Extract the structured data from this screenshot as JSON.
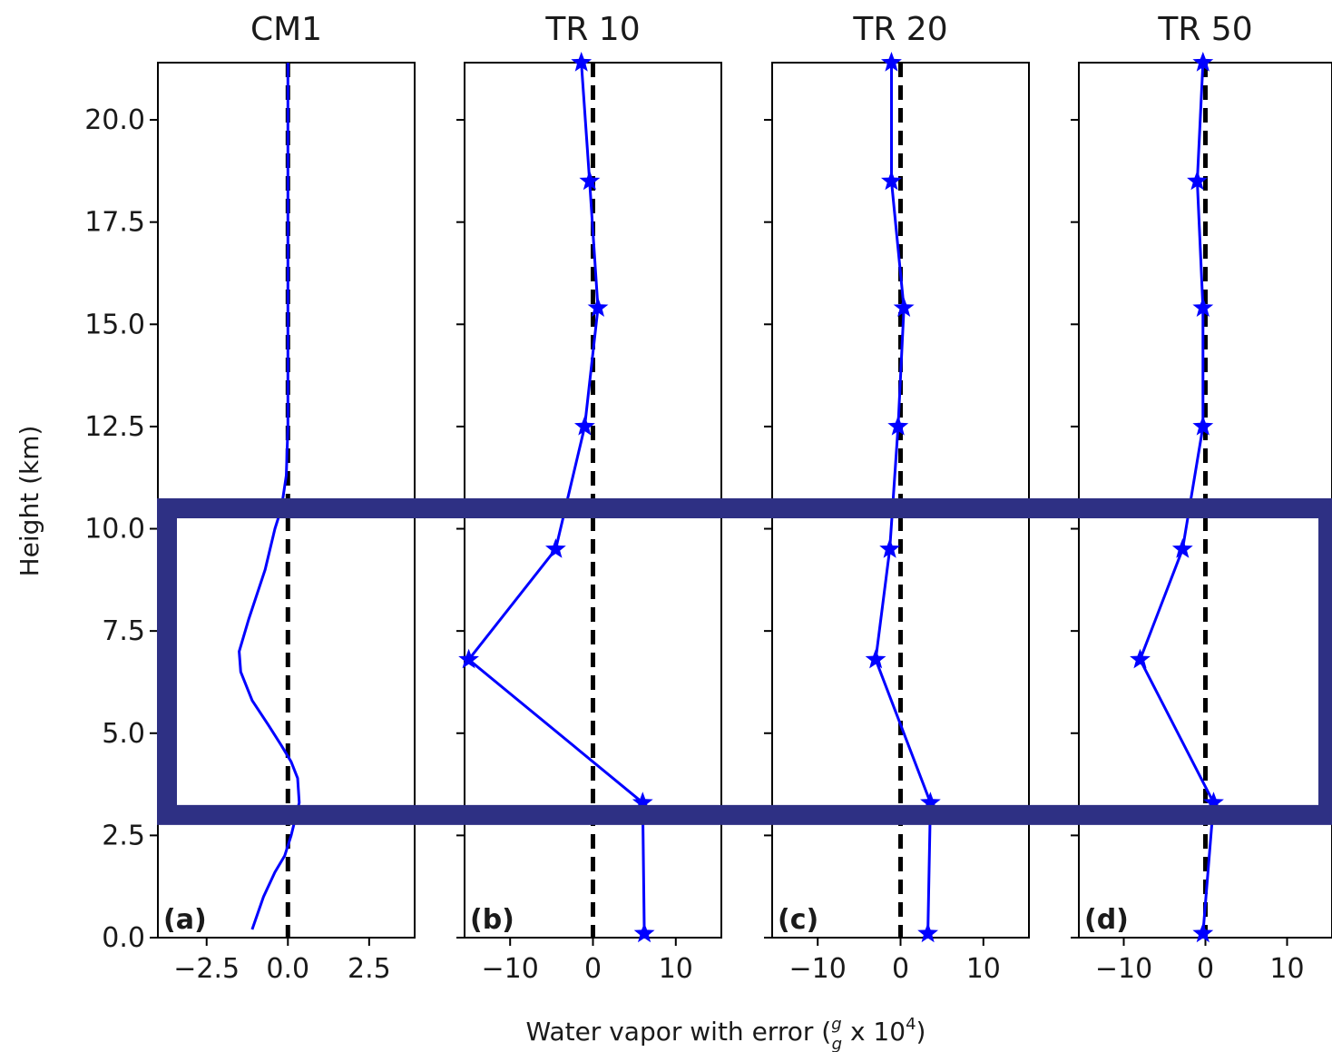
{
  "figure": {
    "ylabel": "Height (km)",
    "xlabel": "Water vapor with error (",
    "xlabel_frac_num": "g",
    "xlabel_frac_den": "g",
    "xlabel_tail": " x 10",
    "xlabel_exp": "4",
    "xlabel_close": ")"
  },
  "colors": {
    "series": "#0000ff",
    "reference": "#000000",
    "highlight": "#2e3084"
  },
  "highlight_box": {
    "y_range_km": [
      3.0,
      10.5
    ],
    "spans": "all panels"
  },
  "chart_data": [
    {
      "type": "line",
      "title": "CM1",
      "panel_label": "(a)",
      "xlim": [
        -4,
        3.9
      ],
      "ylim": [
        0,
        21.4
      ],
      "xticks": [
        -2.5,
        0.0,
        2.5
      ],
      "xtick_labels": [
        "−2.5",
        "0.0",
        "2.5"
      ],
      "yticks": [
        0.0,
        2.5,
        5.0,
        7.5,
        10.0,
        12.5,
        15.0,
        17.5,
        20.0
      ],
      "ytick_labels": [
        "0.0",
        "2.5",
        "5.0",
        "7.5",
        "10.0",
        "12.5",
        "15.0",
        "17.5",
        "20.0"
      ],
      "reference_x": 0,
      "markers": false,
      "series": [
        {
          "x": [
            -1.1,
            -0.75,
            -0.4,
            -0.1,
            0.1,
            0.35,
            0.3,
            0.1,
            -0.2,
            -0.6,
            -1.1,
            -1.45,
            -1.5,
            -1.2,
            -0.7,
            -0.4,
            -0.2,
            -0.05,
            0.0,
            0.0,
            0.0,
            0.0
          ],
          "y": [
            0.2,
            1.0,
            1.6,
            2.0,
            2.5,
            3.3,
            3.9,
            4.3,
            4.7,
            5.2,
            5.8,
            6.5,
            7.0,
            7.8,
            9.0,
            10.0,
            10.5,
            11.3,
            12.5,
            15.0,
            18.5,
            21.4
          ]
        }
      ]
    },
    {
      "type": "line",
      "title": "TR 10",
      "panel_label": "(b)",
      "xlim": [
        -15.5,
        15.5
      ],
      "ylim": [
        0,
        21.4
      ],
      "xticks": [
        -10,
        0,
        10
      ],
      "xtick_labels": [
        "−10",
        "0",
        "10"
      ],
      "yticks": [
        0.0,
        2.5,
        5.0,
        7.5,
        10.0,
        12.5,
        15.0,
        17.5,
        20.0
      ],
      "reference_x": 0,
      "markers": true,
      "series": [
        {
          "x": [
            6.2,
            6.0,
            -15.0,
            -4.5,
            -1.0,
            0.6,
            -0.4,
            -1.4
          ],
          "y": [
            0.1,
            3.3,
            6.8,
            9.5,
            12.5,
            15.4,
            18.5,
            21.4
          ]
        }
      ]
    },
    {
      "type": "line",
      "title": "TR 20",
      "panel_label": "(c)",
      "xlim": [
        -15.5,
        15.5
      ],
      "ylim": [
        0,
        21.4
      ],
      "xticks": [
        -10,
        0,
        10
      ],
      "xtick_labels": [
        "−10",
        "0",
        "10"
      ],
      "yticks": [
        0.0,
        2.5,
        5.0,
        7.5,
        10.0,
        12.5,
        15.0,
        17.5,
        20.0
      ],
      "reference_x": 0,
      "markers": true,
      "series": [
        {
          "x": [
            3.3,
            3.6,
            -3.0,
            -1.3,
            -0.3,
            0.4,
            -1.1,
            -1.1
          ],
          "y": [
            0.1,
            3.3,
            6.8,
            9.5,
            12.5,
            15.4,
            18.5,
            21.4
          ]
        }
      ]
    },
    {
      "type": "line",
      "title": "TR 50",
      "panel_label": "(d)",
      "xlim": [
        -15.5,
        15.5
      ],
      "ylim": [
        0,
        21.4
      ],
      "xticks": [
        -10,
        0,
        10
      ],
      "xtick_labels": [
        "−10",
        "0",
        "10"
      ],
      "yticks": [
        0.0,
        2.5,
        5.0,
        7.5,
        10.0,
        12.5,
        15.0,
        17.5,
        20.0
      ],
      "reference_x": 0,
      "markers": true,
      "series": [
        {
          "x": [
            -0.3,
            1.0,
            -8.0,
            -2.8,
            -0.3,
            -0.3,
            -1.0,
            -0.3
          ],
          "y": [
            0.1,
            3.3,
            6.8,
            9.5,
            12.5,
            15.4,
            18.5,
            21.4
          ]
        }
      ]
    }
  ]
}
